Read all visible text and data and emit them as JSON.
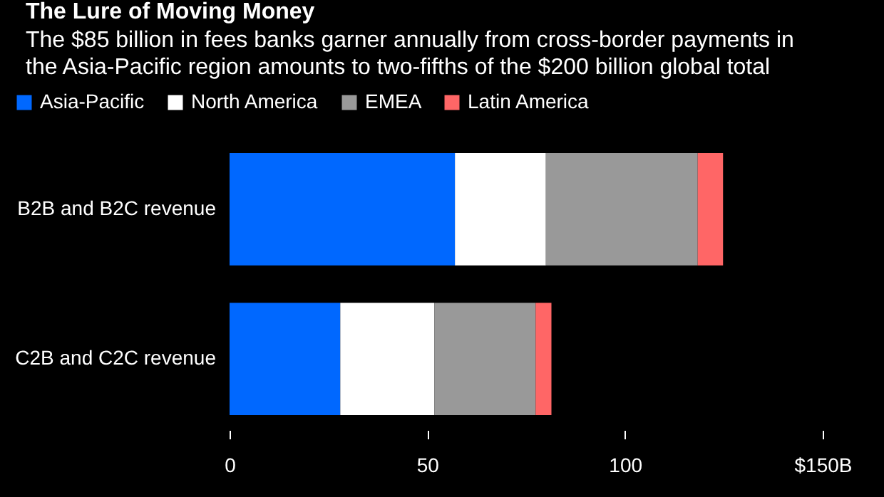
{
  "chart_data": {
    "type": "bar",
    "orientation": "horizontal",
    "stacked": true,
    "title": "The Lure of Moving Money",
    "subtitle": "The $85 billion in fees banks garner annually from cross-border payments in the Asia-Pacific region amounts to two-fifths of the $200 billion global total",
    "categories": [
      "B2B and B2C revenue",
      "C2B and C2C revenue"
    ],
    "series": [
      {
        "name": "Asia-Pacific",
        "color": "#0068ff",
        "values": [
          57,
          28
        ]
      },
      {
        "name": "North America",
        "color": "#ffffff",
        "values": [
          23,
          23.8
        ]
      },
      {
        "name": "EMEA",
        "color": "#999999",
        "values": [
          38.4,
          25.6
        ]
      },
      {
        "name": "Latin America",
        "color": "#ff6666",
        "values": [
          6.4,
          4
        ]
      }
    ],
    "xlim": [
      0,
      150
    ],
    "xticks": [
      0,
      50,
      100,
      {
        "value": 150,
        "label": "$150B"
      }
    ],
    "legend": "top left"
  }
}
